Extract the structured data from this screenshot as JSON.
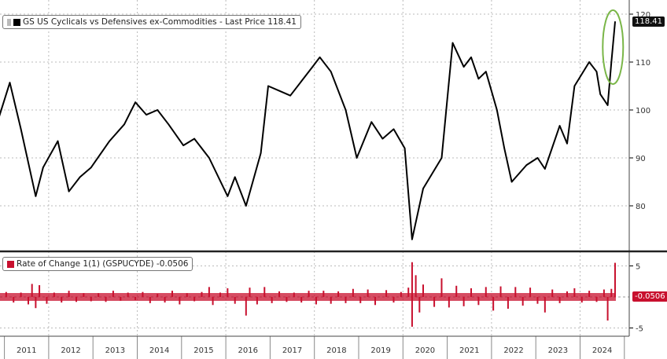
{
  "chart_data": [
    {
      "type": "line",
      "legend": "GS US Cyclicals vs Defensives ex-Commodities - Last Price 118.41",
      "last_value_label": "118.41",
      "color": "#000000",
      "highlight_color": "#7ab648",
      "ylim": [
        70,
        121
      ],
      "yticks": [
        "80",
        "90",
        "100",
        "110",
        "120"
      ],
      "grid": true,
      "legend_placement": "top-left",
      "points": [
        [
          "2010-11",
          98.4
        ],
        [
          "2011-02",
          105.7
        ],
        [
          "2011-05",
          96
        ],
        [
          "2011-09",
          82
        ],
        [
          "2011-11",
          88
        ],
        [
          "2012-03",
          93.5
        ],
        [
          "2012-06",
          83
        ],
        [
          "2012-09",
          86
        ],
        [
          "2012-12",
          88
        ],
        [
          "2013-05",
          93.5
        ],
        [
          "2013-09",
          97
        ],
        [
          "2013-12",
          101.6
        ],
        [
          "2014-03",
          99
        ],
        [
          "2014-06",
          100
        ],
        [
          "2014-09",
          97
        ],
        [
          "2015-01",
          92.6
        ],
        [
          "2015-04",
          94
        ],
        [
          "2015-08",
          90
        ],
        [
          "2016-01",
          82
        ],
        [
          "2016-03",
          86
        ],
        [
          "2016-06",
          80
        ],
        [
          "2016-10",
          91
        ],
        [
          "2016-12",
          105
        ],
        [
          "2017-03",
          104
        ],
        [
          "2017-06",
          103
        ],
        [
          "2017-09",
          106
        ],
        [
          "2017-12",
          109
        ],
        [
          "2018-02",
          111
        ],
        [
          "2018-05",
          108
        ],
        [
          "2018-09",
          100
        ],
        [
          "2018-12",
          90
        ],
        [
          "2019-04",
          97.5
        ],
        [
          "2019-07",
          94
        ],
        [
          "2019-10",
          96
        ],
        [
          "2020-01",
          92
        ],
        [
          "2020-03",
          73
        ],
        [
          "2020-06",
          83.6
        ],
        [
          "2020-11",
          90
        ],
        [
          "2021-02",
          114
        ],
        [
          "2021-05",
          109
        ],
        [
          "2021-07",
          111
        ],
        [
          "2021-09",
          106.5
        ],
        [
          "2021-11",
          108
        ],
        [
          "2022-02",
          100
        ],
        [
          "2022-04",
          92
        ],
        [
          "2022-06",
          85
        ],
        [
          "2022-10",
          88.5
        ],
        [
          "2023-01",
          90
        ],
        [
          "2023-03",
          87.7
        ],
        [
          "2023-07",
          96.7
        ],
        [
          "2023-09",
          93
        ],
        [
          "2023-11",
          105
        ],
        [
          "2024-03",
          110
        ],
        [
          "2024-05",
          108
        ],
        [
          "2024-06",
          103.3
        ],
        [
          "2024-08",
          101
        ],
        [
          "2024-09",
          110
        ],
        [
          "2024-10",
          118.41
        ]
      ]
    },
    {
      "type": "bar",
      "legend": "Rate of Change 1(1) (GSPUCYDE) -0.0506",
      "last_value_label": "-0.0506",
      "color": "#c8102e",
      "ylim": [
        -6,
        6
      ],
      "yticks": [
        "5",
        "-5"
      ],
      "yticks_values": [
        5,
        -5
      ],
      "grid": true,
      "legend_placement": "top-left",
      "points": [
        [
          "2011-01",
          0.8
        ],
        [
          "2011-03",
          -0.9
        ],
        [
          "2011-05",
          0.7
        ],
        [
          "2011-07",
          -1.2
        ],
        [
          "2011-08",
          2.1
        ],
        [
          "2011-09",
          -1.8
        ],
        [
          "2011-10",
          1.9
        ],
        [
          "2011-12",
          -1.1
        ],
        [
          "2012-02",
          0.7
        ],
        [
          "2012-04",
          -0.9
        ],
        [
          "2012-06",
          1.0
        ],
        [
          "2012-08",
          -0.8
        ],
        [
          "2012-10",
          0.6
        ],
        [
          "2012-12",
          -0.7
        ],
        [
          "2013-02",
          0.6
        ],
        [
          "2013-04",
          -0.8
        ],
        [
          "2013-06",
          1.0
        ],
        [
          "2013-08",
          -0.6
        ],
        [
          "2013-10",
          0.7
        ],
        [
          "2013-12",
          -0.5
        ],
        [
          "2014-02",
          0.8
        ],
        [
          "2014-04",
          -1.0
        ],
        [
          "2014-06",
          0.5
        ],
        [
          "2014-08",
          -0.9
        ],
        [
          "2014-10",
          1.0
        ],
        [
          "2014-12",
          -1.2
        ],
        [
          "2015-02",
          0.6
        ],
        [
          "2015-04",
          -0.7
        ],
        [
          "2015-06",
          0.8
        ],
        [
          "2015-08",
          1.6
        ],
        [
          "2015-09",
          -1.3
        ],
        [
          "2015-11",
          0.7
        ],
        [
          "2016-01",
          1.4
        ],
        [
          "2016-03",
          -1.1
        ],
        [
          "2016-06",
          -3.0
        ],
        [
          "2016-07",
          1.5
        ],
        [
          "2016-09",
          -1.2
        ],
        [
          "2016-11",
          1.6
        ],
        [
          "2017-01",
          -1.0
        ],
        [
          "2017-03",
          0.9
        ],
        [
          "2017-05",
          -0.8
        ],
        [
          "2017-07",
          0.7
        ],
        [
          "2017-09",
          -0.9
        ],
        [
          "2017-11",
          1.0
        ],
        [
          "2018-01",
          -1.2
        ],
        [
          "2018-03",
          1.0
        ],
        [
          "2018-05",
          -1.1
        ],
        [
          "2018-07",
          0.9
        ],
        [
          "2018-09",
          -1.0
        ],
        [
          "2018-11",
          1.3
        ],
        [
          "2019-01",
          -1.0
        ],
        [
          "2019-03",
          1.2
        ],
        [
          "2019-05",
          -1.3
        ],
        [
          "2019-08",
          1.1
        ],
        [
          "2019-10",
          -0.9
        ],
        [
          "2019-12",
          0.8
        ],
        [
          "2020-02",
          1.5
        ],
        [
          "2020-03",
          5.6
        ],
        [
          "2020-03",
          -4.8
        ],
        [
          "2020-04",
          3.5
        ],
        [
          "2020-05",
          -2.5
        ],
        [
          "2020-06",
          2.0
        ],
        [
          "2020-09",
          -1.6
        ],
        [
          "2020-11",
          3.0
        ],
        [
          "2021-01",
          -1.7
        ],
        [
          "2021-03",
          1.8
        ],
        [
          "2021-05",
          -1.5
        ],
        [
          "2021-07",
          1.4
        ],
        [
          "2021-09",
          -1.3
        ],
        [
          "2021-11",
          1.6
        ],
        [
          "2022-01",
          -2.2
        ],
        [
          "2022-03",
          1.7
        ],
        [
          "2022-05",
          -1.9
        ],
        [
          "2022-07",
          1.6
        ],
        [
          "2022-09",
          -1.4
        ],
        [
          "2022-11",
          1.5
        ],
        [
          "2023-01",
          -1.1
        ],
        [
          "2023-03",
          -2.5
        ],
        [
          "2023-05",
          1.2
        ],
        [
          "2023-07",
          -1.0
        ],
        [
          "2023-09",
          0.9
        ],
        [
          "2023-11",
          1.4
        ],
        [
          "2024-01",
          -0.9
        ],
        [
          "2024-03",
          1.0
        ],
        [
          "2024-05",
          -0.8
        ],
        [
          "2024-07",
          1.2
        ],
        [
          "2024-08",
          -3.8
        ],
        [
          "2024-09",
          1.3
        ],
        [
          "2024-10",
          5.5
        ],
        [
          "2024-10",
          -0.0506
        ]
      ]
    }
  ],
  "x_axis": {
    "ticks": [
      "2011",
      "2012",
      "2013",
      "2014",
      "2015",
      "2016",
      "2017",
      "2018",
      "2019",
      "2020",
      "2021",
      "2022",
      "2023",
      "2024"
    ]
  }
}
